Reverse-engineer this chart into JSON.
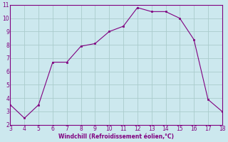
{
  "x": [
    3,
    4,
    5,
    6,
    7,
    8,
    9,
    10,
    11,
    12,
    13,
    14,
    15,
    16,
    17,
    18
  ],
  "y": [
    3.5,
    2.5,
    3.5,
    6.7,
    6.7,
    7.9,
    8.1,
    9.0,
    9.4,
    10.8,
    10.5,
    10.5,
    10.0,
    8.4,
    3.9,
    3.0
  ],
  "line_color": "#800080",
  "marker": "s",
  "marker_size": 1.8,
  "bg_color": "#cce8ee",
  "grid_color": "#aacccc",
  "xlabel": "Windchill (Refroidissement éolien,°C)",
  "xlabel_color": "#800080",
  "tick_color": "#800080",
  "label_color": "#800080",
  "xlim": [
    3,
    18
  ],
  "ylim": [
    2,
    11
  ],
  "xticks": [
    3,
    4,
    5,
    6,
    7,
    8,
    9,
    10,
    11,
    12,
    13,
    14,
    15,
    16,
    17,
    18
  ],
  "yticks": [
    2,
    3,
    4,
    5,
    6,
    7,
    8,
    9,
    10,
    11
  ]
}
